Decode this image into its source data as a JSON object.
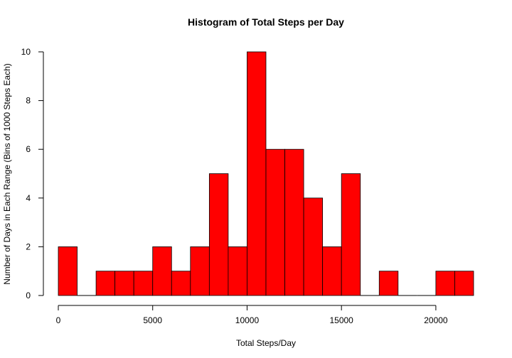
{
  "chart_data": {
    "type": "bar",
    "title": "Histogram of Total Steps per Day",
    "xlabel": "Total Steps/Day",
    "ylabel": "Number of Days in Each Range (Bins of 1000 Steps Each)",
    "bin_width": 1000,
    "bin_starts": [
      0,
      1000,
      2000,
      3000,
      4000,
      5000,
      6000,
      7000,
      8000,
      9000,
      10000,
      11000,
      12000,
      13000,
      14000,
      15000,
      16000,
      17000,
      18000,
      19000,
      20000,
      21000
    ],
    "values": [
      2,
      0,
      1,
      1,
      1,
      2,
      1,
      2,
      5,
      2,
      10,
      6,
      6,
      4,
      2,
      5,
      0,
      1,
      0,
      0,
      1,
      1
    ],
    "xlim": [
      0,
      22000
    ],
    "ylim": [
      0,
      10
    ],
    "x_ticks": [
      0,
      5000,
      10000,
      15000,
      20000
    ],
    "y_ticks": [
      0,
      2,
      4,
      6,
      8,
      10
    ],
    "bar_color": "#ff0000",
    "grid": false
  }
}
